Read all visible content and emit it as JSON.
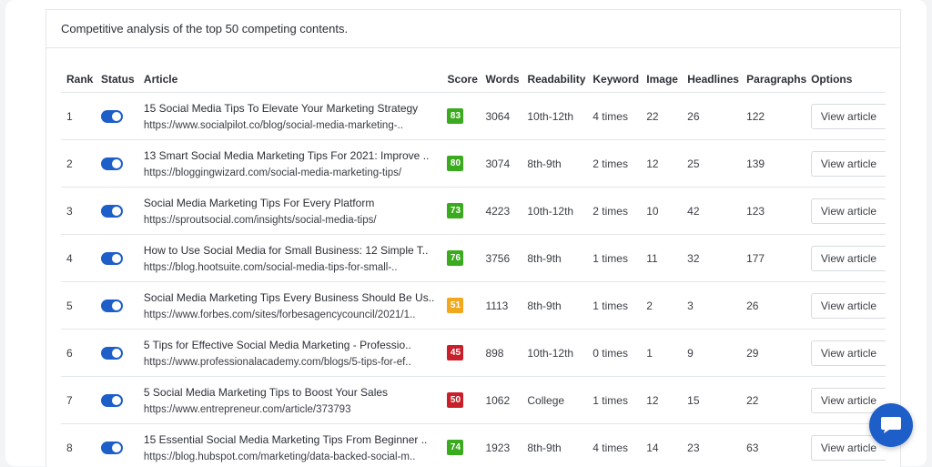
{
  "header": {
    "title": "Competitive analysis of the top 50 competing contents."
  },
  "columns": {
    "rank": "Rank",
    "status": "Status",
    "article": "Article",
    "score": "Score",
    "words": "Words",
    "readability": "Readability",
    "keyword": "Keyword",
    "image": "Image",
    "headlines": "Headlines",
    "paragraphs": "Paragraphs",
    "options": "Options"
  },
  "colors": {
    "accent": "#1d5ec9",
    "score_green": "#3aaa1e",
    "score_orange": "#f2a81d",
    "score_red": "#c8202a"
  },
  "rows": [
    {
      "rank": "1",
      "status_on": true,
      "title": "15 Social Media Tips To Elevate Your Marketing Strategy",
      "url": "https://www.socialpilot.co/blog/social-media-marketing-..",
      "score": "83",
      "score_color": "#3aaa1e",
      "words": "3064",
      "readability": "10th-12th",
      "keyword": "4 times",
      "image": "22",
      "headlines": "26",
      "paragraphs": "122",
      "option": "View article"
    },
    {
      "rank": "2",
      "status_on": true,
      "title": "13 Smart Social Media Marketing Tips For 2021: Improve ..",
      "url": "https://bloggingwizard.com/social-media-marketing-tips/",
      "score": "80",
      "score_color": "#3aaa1e",
      "words": "3074",
      "readability": "8th-9th",
      "keyword": "2 times",
      "image": "12",
      "headlines": "25",
      "paragraphs": "139",
      "option": "View article"
    },
    {
      "rank": "3",
      "status_on": true,
      "title": "Social Media Marketing Tips For Every Platform",
      "url": "https://sproutsocial.com/insights/social-media-tips/",
      "score": "73",
      "score_color": "#3aaa1e",
      "words": "4223",
      "readability": "10th-12th",
      "keyword": "2 times",
      "image": "10",
      "headlines": "42",
      "paragraphs": "123",
      "option": "View article"
    },
    {
      "rank": "4",
      "status_on": true,
      "title": "How to Use Social Media for Small Business: 12 Simple T..",
      "url": "https://blog.hootsuite.com/social-media-tips-for-small-..",
      "score": "76",
      "score_color": "#3aaa1e",
      "words": "3756",
      "readability": "8th-9th",
      "keyword": "1 times",
      "image": "11",
      "headlines": "32",
      "paragraphs": "177",
      "option": "View article"
    },
    {
      "rank": "5",
      "status_on": true,
      "title": "Social Media Marketing Tips Every Business Should Be Us..",
      "url": "https://www.forbes.com/sites/forbesagencycouncil/2021/1..",
      "score": "51",
      "score_color": "#f2a81d",
      "words": "1113",
      "readability": "8th-9th",
      "keyword": "1 times",
      "image": "2",
      "headlines": "3",
      "paragraphs": "26",
      "option": "View article"
    },
    {
      "rank": "6",
      "status_on": true,
      "title": "5 Tips for Effective Social Media Marketing - Professio..",
      "url": "https://www.professionalacademy.com/blogs/5-tips-for-ef..",
      "score": "45",
      "score_color": "#c8202a",
      "words": "898",
      "readability": "10th-12th",
      "keyword": "0 times",
      "image": "1",
      "headlines": "9",
      "paragraphs": "29",
      "option": "View article"
    },
    {
      "rank": "7",
      "status_on": true,
      "title": "5 Social Media Marketing Tips to Boost Your Sales",
      "url": "https://www.entrepreneur.com/article/373793",
      "score": "50",
      "score_color": "#c8202a",
      "words": "1062",
      "readability": "College",
      "keyword": "1 times",
      "image": "12",
      "headlines": "15",
      "paragraphs": "22",
      "option": "View article"
    },
    {
      "rank": "8",
      "status_on": true,
      "title": "15 Essential Social Media Marketing Tips From Beginner ..",
      "url": "https://blog.hubspot.com/marketing/data-backed-social-m..",
      "score": "74",
      "score_color": "#3aaa1e",
      "words": "1923",
      "readability": "8th-9th",
      "keyword": "4 times",
      "image": "14",
      "headlines": "23",
      "paragraphs": "63",
      "option": "View article"
    }
  ],
  "chat": {
    "icon": "chat-icon"
  }
}
